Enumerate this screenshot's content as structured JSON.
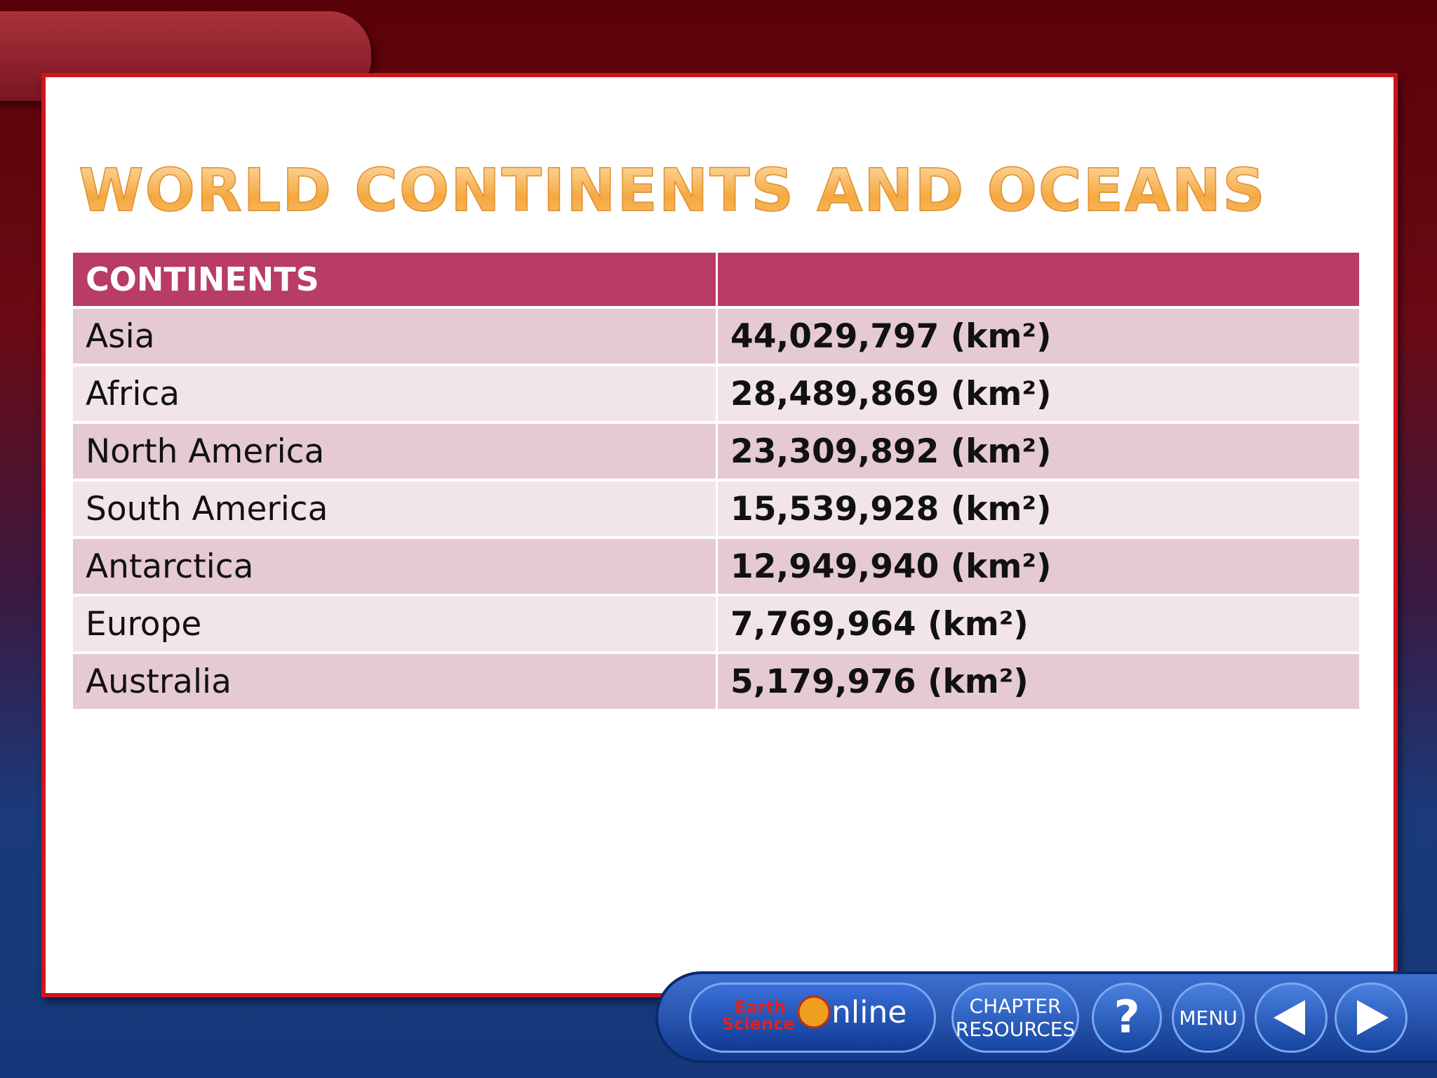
{
  "title": "WORLD CONTINENTS AND OCEANS",
  "table": {
    "header": "CONTINENTS",
    "rows": [
      [
        "Asia",
        "44,029,797 (km²)"
      ],
      [
        "Africa",
        "28,489,869 (km²)"
      ],
      [
        "North America",
        "23,309,892 (km²)"
      ],
      [
        "South America",
        "15,539,928 (km²)"
      ],
      [
        "Antarctica",
        "12,949,940 (km²)"
      ],
      [
        "Europe",
        "7,769,964 (km²)"
      ],
      [
        "Australia",
        "5,179,976 (km²)"
      ]
    ]
  },
  "toolbar": {
    "logo": [
      "Earth",
      "Science",
      "nline"
    ],
    "chapter": [
      "CHAPTER",
      "RESOURCES"
    ],
    "help": "?",
    "menu": "MENU"
  }
}
